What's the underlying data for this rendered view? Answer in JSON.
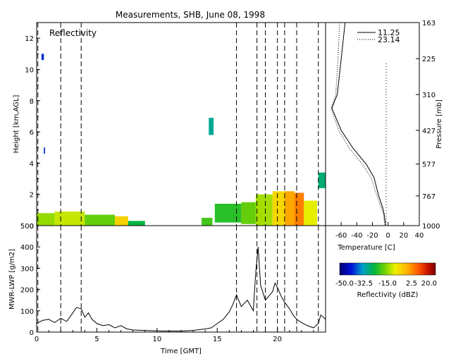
{
  "chart_data": [
    {
      "type": "heatmap",
      "title": "Measurements, SHB, June 08, 1998",
      "panel_label": "Reflectivity",
      "ylabel": "Height [km,AGL]",
      "xlim": [
        0,
        24
      ],
      "ylim": [
        0,
        13
      ],
      "yticks": [
        0,
        2,
        4,
        6,
        8,
        10,
        12
      ],
      "dashed_times": [
        0.1,
        2.0,
        3.7,
        16.6,
        18.3,
        19.0,
        20.0,
        20.6,
        21.6,
        23.4
      ],
      "cloud_cells": [
        {
          "t0": 0.0,
          "t1": 1.5,
          "h0": 0.0,
          "h1": 0.8,
          "dbz": -15
        },
        {
          "t0": 1.5,
          "t1": 4.0,
          "h0": 0.0,
          "h1": 0.9,
          "dbz": -12
        },
        {
          "t0": 4.0,
          "t1": 6.5,
          "h0": 0.0,
          "h1": 0.7,
          "dbz": -18
        },
        {
          "t0": 6.5,
          "t1": 7.6,
          "h0": 0.0,
          "h1": 0.6,
          "dbz": -5
        },
        {
          "t0": 7.6,
          "t1": 9.0,
          "h0": 0.0,
          "h1": 0.3,
          "dbz": -25
        },
        {
          "t0": 13.7,
          "t1": 14.6,
          "h0": 0.0,
          "h1": 0.5,
          "dbz": -20
        },
        {
          "t0": 14.8,
          "t1": 17.0,
          "h0": 0.2,
          "h1": 1.4,
          "dbz": -22
        },
        {
          "t0": 17.0,
          "t1": 18.2,
          "h0": 0.1,
          "h1": 1.5,
          "dbz": -18
        },
        {
          "t0": 18.2,
          "t1": 19.6,
          "h0": 0.0,
          "h1": 2.0,
          "dbz": -14
        },
        {
          "t0": 19.6,
          "t1": 20.6,
          "h0": 0.0,
          "h1": 2.2,
          "dbz": -6
        },
        {
          "t0": 20.6,
          "t1": 21.4,
          "h0": 0.0,
          "h1": 2.2,
          "dbz": 0
        },
        {
          "t0": 21.4,
          "t1": 22.2,
          "h0": 0.0,
          "h1": 2.1,
          "dbz": 4
        },
        {
          "t0": 22.2,
          "t1": 23.3,
          "h0": 0.0,
          "h1": 1.6,
          "dbz": -10
        },
        {
          "t0": 23.4,
          "t1": 24.0,
          "h0": 2.4,
          "h1": 3.4,
          "dbz": -28
        },
        {
          "t0": 14.3,
          "t1": 14.7,
          "h0": 5.8,
          "h1": 6.9,
          "dbz": -30
        },
        {
          "t0": 0.4,
          "t1": 0.6,
          "h0": 10.6,
          "h1": 11.0,
          "dbz": -40
        },
        {
          "t0": 0.6,
          "t1": 0.7,
          "h0": 4.6,
          "h1": 5.0,
          "dbz": -40
        }
      ]
    },
    {
      "type": "line",
      "ylabel": "MWR-LWP [g/m2]",
      "xlabel": "Time [GMT]",
      "xlim": [
        0,
        24
      ],
      "ylim": [
        0,
        500
      ],
      "xticks": [
        0,
        5,
        10,
        15,
        20
      ],
      "yticks": [
        0,
        100,
        200,
        300,
        400,
        500
      ],
      "series": [
        {
          "x": [
            0,
            0.5,
            1,
            1.5,
            2,
            2.5,
            3,
            3.3,
            3.7,
            4,
            4.3,
            4.6,
            5,
            5.5,
            6,
            6.5,
            7,
            7.5,
            8,
            9,
            10,
            11,
            12,
            13,
            14,
            14.5,
            15,
            15.5,
            16,
            16.3,
            16.6,
            17,
            17.5,
            18,
            18.2,
            18.4,
            18.6,
            19,
            19.3,
            19.6,
            19.8,
            20,
            20.3,
            20.6,
            21,
            21.3,
            21.6,
            22,
            22.5,
            23,
            23.4,
            23.6,
            24
          ],
          "y": [
            40,
            55,
            60,
            45,
            65,
            50,
            90,
            115,
            110,
            70,
            90,
            60,
            40,
            30,
            35,
            20,
            30,
            15,
            10,
            8,
            6,
            5,
            5,
            8,
            15,
            20,
            40,
            60,
            95,
            130,
            175,
            120,
            150,
            100,
            280,
            400,
            220,
            150,
            170,
            190,
            230,
            210,
            170,
            140,
            110,
            80,
            60,
            45,
            30,
            20,
            40,
            80,
            60
          ]
        }
      ]
    },
    {
      "type": "line",
      "xlabel": "Temperature [C]",
      "ylabel": "Pressure [mb]",
      "xlim": [
        -80,
        40
      ],
      "xticks": [
        -60,
        -40,
        -20,
        0,
        20,
        40
      ],
      "ytick_labels": [
        "163",
        "225",
        "310",
        "427",
        "577",
        "767",
        "1000"
      ],
      "series": [
        {
          "name": "11.25",
          "style": "solid",
          "pressure": [
            163,
            225,
            310,
            350,
            427,
            500,
            577,
            650,
            767,
            850,
            900,
            1000
          ],
          "temperature": [
            -55,
            -60,
            -65,
            -72,
            -60,
            -45,
            -28,
            -18,
            -12,
            -7,
            -5,
            -3
          ]
        },
        {
          "name": "23.14",
          "style": "dotted",
          "pressure": [
            163,
            225,
            310,
            350,
            427,
            500,
            577,
            650,
            767,
            850,
            900,
            1000
          ],
          "temperature": [
            -62,
            -64,
            -67,
            -73,
            -63,
            -50,
            -33,
            -22,
            -14,
            -9,
            -6,
            -4
          ]
        }
      ]
    },
    {
      "type": "colorbar",
      "label": "Reflectivity (dBZ)",
      "range": [
        -50,
        20
      ],
      "tick_labels": [
        "-50.0",
        "-32.5",
        "-15.0",
        "2.5",
        "20.0"
      ]
    }
  ]
}
